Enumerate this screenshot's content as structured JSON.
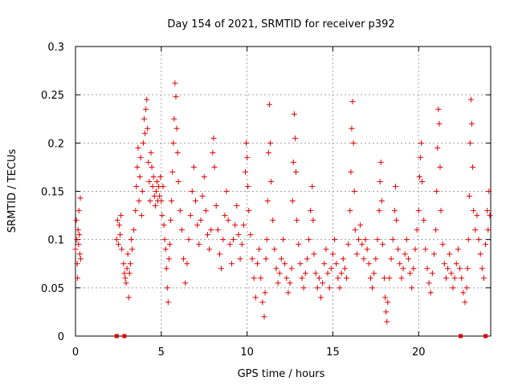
{
  "chart_data": {
    "type": "scatter",
    "title": "Day 154 of 2021, SRMTID for receiver p392",
    "xlabel": "GPS time / hours",
    "ylabel": "SRMTID / TECUs",
    "xlim": [
      0,
      24.2
    ],
    "ylim": [
      0,
      0.3
    ],
    "xticks": [
      0,
      5,
      10,
      15,
      20
    ],
    "xtick_labels": [
      "0",
      "5",
      "10",
      "15",
      "20"
    ],
    "yticks": [
      0,
      0.05,
      0.1,
      0.15,
      0.2,
      0.25,
      0.3
    ],
    "ytick_labels": [
      "0",
      "0.05",
      "0.1",
      "0.15",
      "0.2",
      "0.25",
      "0.3"
    ],
    "grid": true,
    "marker": "+",
    "color": "#e00000",
    "baseline_markers_x": [
      2.4,
      2.85,
      22.45,
      23.9
    ],
    "series": [
      {
        "name": "SRMTID",
        "points": [
          [
            0.0,
            0.09
          ],
          [
            0.05,
            0.12
          ],
          [
            0.08,
            0.1
          ],
          [
            0.1,
            0.075
          ],
          [
            0.12,
            0.06
          ],
          [
            0.15,
            0.11
          ],
          [
            0.18,
            0.095
          ],
          [
            0.2,
            0.13
          ],
          [
            0.22,
            0.105
          ],
          [
            0.25,
            0.085
          ],
          [
            0.28,
            0.143
          ],
          [
            0.3,
            0.08
          ],
          [
            2.4,
            0.1
          ],
          [
            2.45,
            0.12
          ],
          [
            2.5,
            0.095
          ],
          [
            2.55,
            0.115
          ],
          [
            2.6,
            0.105
          ],
          [
            2.65,
            0.125
          ],
          [
            2.7,
            0.09
          ],
          [
            2.8,
            0.075
          ],
          [
            2.85,
            0.065
          ],
          [
            2.9,
            0.06
          ],
          [
            2.95,
            0.055
          ],
          [
            3.0,
            0.07
          ],
          [
            3.05,
            0.085
          ],
          [
            3.1,
            0.04
          ],
          [
            3.15,
            0.065
          ],
          [
            3.2,
            0.075
          ],
          [
            3.25,
            0.1
          ],
          [
            3.3,
            0.09
          ],
          [
            3.4,
            0.11
          ],
          [
            3.5,
            0.13
          ],
          [
            3.55,
            0.155
          ],
          [
            3.6,
            0.175
          ],
          [
            3.65,
            0.195
          ],
          [
            3.7,
            0.14
          ],
          [
            3.75,
            0.165
          ],
          [
            3.8,
            0.185
          ],
          [
            3.85,
            0.125
          ],
          [
            3.9,
            0.15
          ],
          [
            3.95,
            0.2
          ],
          [
            4.0,
            0.225
          ],
          [
            4.05,
            0.21
          ],
          [
            4.1,
            0.235
          ],
          [
            4.15,
            0.245
          ],
          [
            4.2,
            0.215
          ],
          [
            4.25,
            0.18
          ],
          [
            4.3,
            0.16
          ],
          [
            4.35,
            0.14
          ],
          [
            4.4,
            0.19
          ],
          [
            4.45,
            0.175
          ],
          [
            4.5,
            0.155
          ],
          [
            4.55,
            0.165
          ],
          [
            4.6,
            0.145
          ],
          [
            4.65,
            0.135
          ],
          [
            4.7,
            0.15
          ],
          [
            4.75,
            0.16
          ],
          [
            4.8,
            0.14
          ],
          [
            4.85,
            0.155
          ],
          [
            4.9,
            0.145
          ],
          [
            4.95,
            0.165
          ],
          [
            5.0,
            0.14
          ],
          [
            5.05,
            0.125
          ],
          [
            5.1,
            0.155
          ],
          [
            5.15,
            0.115
          ],
          [
            5.2,
            0.1
          ],
          [
            5.25,
            0.09
          ],
          [
            5.3,
            0.07
          ],
          [
            5.35,
            0.05
          ],
          [
            5.4,
            0.035
          ],
          [
            5.45,
            0.08
          ],
          [
            5.5,
            0.095
          ],
          [
            5.55,
            0.12
          ],
          [
            5.6,
            0.14
          ],
          [
            5.65,
            0.17
          ],
          [
            5.7,
            0.2
          ],
          [
            5.75,
            0.225
          ],
          [
            5.8,
            0.262
          ],
          [
            5.85,
            0.248
          ],
          [
            5.9,
            0.215
          ],
          [
            5.95,
            0.19
          ],
          [
            6.0,
            0.16
          ],
          [
            6.1,
            0.13
          ],
          [
            6.2,
            0.11
          ],
          [
            6.3,
            0.08
          ],
          [
            6.4,
            0.055
          ],
          [
            6.5,
            0.075
          ],
          [
            6.6,
            0.1
          ],
          [
            6.7,
            0.125
          ],
          [
            6.8,
            0.15
          ],
          [
            6.9,
            0.175
          ],
          [
            7.0,
            0.14
          ],
          [
            7.1,
            0.115
          ],
          [
            7.2,
            0.095
          ],
          [
            7.3,
            0.12
          ],
          [
            7.4,
            0.145
          ],
          [
            7.5,
            0.165
          ],
          [
            7.6,
            0.13
          ],
          [
            7.7,
            0.105
          ],
          [
            7.8,
            0.09
          ],
          [
            7.9,
            0.11
          ],
          [
            8.0,
            0.19
          ],
          [
            8.05,
            0.205
          ],
          [
            8.1,
            0.175
          ],
          [
            8.2,
            0.135
          ],
          [
            8.3,
            0.11
          ],
          [
            8.4,
            0.085
          ],
          [
            8.5,
            0.07
          ],
          [
            8.6,
            0.1
          ],
          [
            8.7,
            0.125
          ],
          [
            8.8,
            0.15
          ],
          [
            8.9,
            0.12
          ],
          [
            9.0,
            0.095
          ],
          [
            9.1,
            0.075
          ],
          [
            9.2,
            0.1
          ],
          [
            9.3,
            0.115
          ],
          [
            9.4,
            0.135
          ],
          [
            9.5,
            0.105
          ],
          [
            9.6,
            0.08
          ],
          [
            9.7,
            0.095
          ],
          [
            9.8,
            0.115
          ],
          [
            9.9,
            0.17
          ],
          [
            9.95,
            0.2
          ],
          [
            10.0,
            0.185
          ],
          [
            10.05,
            0.155
          ],
          [
            10.1,
            0.13
          ],
          [
            10.2,
            0.105
          ],
          [
            10.3,
            0.08
          ],
          [
            10.4,
            0.06
          ],
          [
            10.5,
            0.04
          ],
          [
            10.6,
            0.075
          ],
          [
            10.7,
            0.09
          ],
          [
            10.8,
            0.06
          ],
          [
            10.9,
            0.035
          ],
          [
            11.0,
            0.02
          ],
          [
            11.05,
            0.045
          ],
          [
            11.1,
            0.08
          ],
          [
            11.15,
            0.1
          ],
          [
            11.2,
            0.14
          ],
          [
            11.25,
            0.19
          ],
          [
            11.3,
            0.24
          ],
          [
            11.35,
            0.2
          ],
          [
            11.4,
            0.16
          ],
          [
            11.5,
            0.12
          ],
          [
            11.6,
            0.09
          ],
          [
            11.7,
            0.07
          ],
          [
            11.8,
            0.055
          ],
          [
            11.9,
            0.065
          ],
          [
            12.0,
            0.08
          ],
          [
            12.1,
            0.1
          ],
          [
            12.2,
            0.075
          ],
          [
            12.3,
            0.06
          ],
          [
            12.4,
            0.045
          ],
          [
            12.5,
            0.055
          ],
          [
            12.6,
            0.07
          ],
          [
            12.65,
            0.14
          ],
          [
            12.7,
            0.18
          ],
          [
            12.75,
            0.23
          ],
          [
            12.8,
            0.205
          ],
          [
            12.85,
            0.17
          ],
          [
            12.9,
            0.12
          ],
          [
            13.0,
            0.095
          ],
          [
            13.1,
            0.075
          ],
          [
            13.2,
            0.06
          ],
          [
            13.3,
            0.05
          ],
          [
            13.4,
            0.065
          ],
          [
            13.5,
            0.08
          ],
          [
            13.6,
            0.1
          ],
          [
            13.7,
            0.13
          ],
          [
            13.8,
            0.155
          ],
          [
            13.85,
            0.12
          ],
          [
            13.9,
            0.085
          ],
          [
            14.0,
            0.065
          ],
          [
            14.1,
            0.05
          ],
          [
            14.2,
            0.06
          ],
          [
            14.3,
            0.04
          ],
          [
            14.4,
            0.055
          ],
          [
            14.5,
            0.075
          ],
          [
            14.6,
            0.09
          ],
          [
            14.7,
            0.065
          ],
          [
            14.8,
            0.05
          ],
          [
            14.9,
            0.07
          ],
          [
            15.0,
            0.085
          ],
          [
            15.1,
            0.1
          ],
          [
            15.2,
            0.075
          ],
          [
            15.3,
            0.06
          ],
          [
            15.4,
            0.05
          ],
          [
            15.5,
            0.065
          ],
          [
            15.6,
            0.08
          ],
          [
            15.7,
            0.07
          ],
          [
            15.8,
            0.06
          ],
          [
            15.9,
            0.095
          ],
          [
            16.0,
            0.13
          ],
          [
            16.05,
            0.17
          ],
          [
            16.1,
            0.215
          ],
          [
            16.15,
            0.243
          ],
          [
            16.2,
            0.2
          ],
          [
            16.25,
            0.15
          ],
          [
            16.3,
            0.11
          ],
          [
            16.4,
            0.085
          ],
          [
            16.5,
            0.1
          ],
          [
            16.6,
            0.115
          ],
          [
            16.7,
            0.095
          ],
          [
            16.8,
            0.08
          ],
          [
            16.9,
            0.1
          ],
          [
            17.0,
            0.09
          ],
          [
            17.1,
            0.075
          ],
          [
            17.2,
            0.06
          ],
          [
            17.3,
            0.05
          ],
          [
            17.4,
            0.065
          ],
          [
            17.5,
            0.08
          ],
          [
            17.6,
            0.1
          ],
          [
            17.7,
            0.13
          ],
          [
            17.75,
            0.16
          ],
          [
            17.8,
            0.18
          ],
          [
            17.85,
            0.14
          ],
          [
            17.9,
            0.095
          ],
          [
            18.0,
            0.06
          ],
          [
            18.05,
            0.04
          ],
          [
            18.1,
            0.025
          ],
          [
            18.15,
            0.015
          ],
          [
            18.2,
            0.035
          ],
          [
            18.3,
            0.06
          ],
          [
            18.4,
            0.08
          ],
          [
            18.5,
            0.1
          ],
          [
            18.6,
            0.13
          ],
          [
            18.65,
            0.155
          ],
          [
            18.7,
            0.12
          ],
          [
            18.8,
            0.09
          ],
          [
            18.9,
            0.075
          ],
          [
            19.0,
            0.06
          ],
          [
            19.1,
            0.07
          ],
          [
            19.2,
            0.085
          ],
          [
            19.3,
            0.1
          ],
          [
            19.4,
            0.08
          ],
          [
            19.5,
            0.065
          ],
          [
            19.6,
            0.05
          ],
          [
            19.7,
            0.07
          ],
          [
            19.8,
            0.09
          ],
          [
            19.9,
            0.11
          ],
          [
            20.0,
            0.13
          ],
          [
            20.05,
            0.165
          ],
          [
            20.1,
            0.185
          ],
          [
            20.15,
            0.2
          ],
          [
            20.2,
            0.16
          ],
          [
            20.3,
            0.12
          ],
          [
            20.4,
            0.09
          ],
          [
            20.5,
            0.07
          ],
          [
            20.6,
            0.055
          ],
          [
            20.7,
            0.045
          ],
          [
            20.8,
            0.065
          ],
          [
            20.9,
            0.085
          ],
          [
            21.0,
            0.11
          ],
          [
            21.05,
            0.15
          ],
          [
            21.1,
            0.195
          ],
          [
            21.15,
            0.235
          ],
          [
            21.2,
            0.22
          ],
          [
            21.25,
            0.175
          ],
          [
            21.3,
            0.13
          ],
          [
            21.4,
            0.095
          ],
          [
            21.5,
            0.075
          ],
          [
            21.6,
            0.06
          ],
          [
            21.7,
            0.07
          ],
          [
            21.8,
            0.085
          ],
          [
            21.9,
            0.065
          ],
          [
            22.0,
            0.05
          ],
          [
            22.1,
            0.06
          ],
          [
            22.2,
            0.075
          ],
          [
            22.3,
            0.09
          ],
          [
            22.4,
            0.07
          ],
          [
            22.5,
            0.06
          ],
          [
            22.6,
            0.045
          ],
          [
            22.7,
            0.035
          ],
          [
            22.8,
            0.05
          ],
          [
            22.85,
            0.07
          ],
          [
            22.9,
            0.1
          ],
          [
            22.95,
            0.145
          ],
          [
            23.0,
            0.2
          ],
          [
            23.05,
            0.245
          ],
          [
            23.1,
            0.22
          ],
          [
            23.15,
            0.175
          ],
          [
            23.2,
            0.13
          ],
          [
            23.3,
            0.11
          ],
          [
            23.4,
            0.125
          ],
          [
            23.5,
            0.1
          ],
          [
            23.6,
            0.085
          ],
          [
            23.7,
            0.07
          ],
          [
            23.8,
            0.06
          ],
          [
            23.9,
            0.095
          ],
          [
            24.0,
            0.13
          ],
          [
            24.05,
            0.11
          ],
          [
            24.1,
            0.15
          ],
          [
            24.15,
            0.125
          ]
        ]
      }
    ]
  }
}
